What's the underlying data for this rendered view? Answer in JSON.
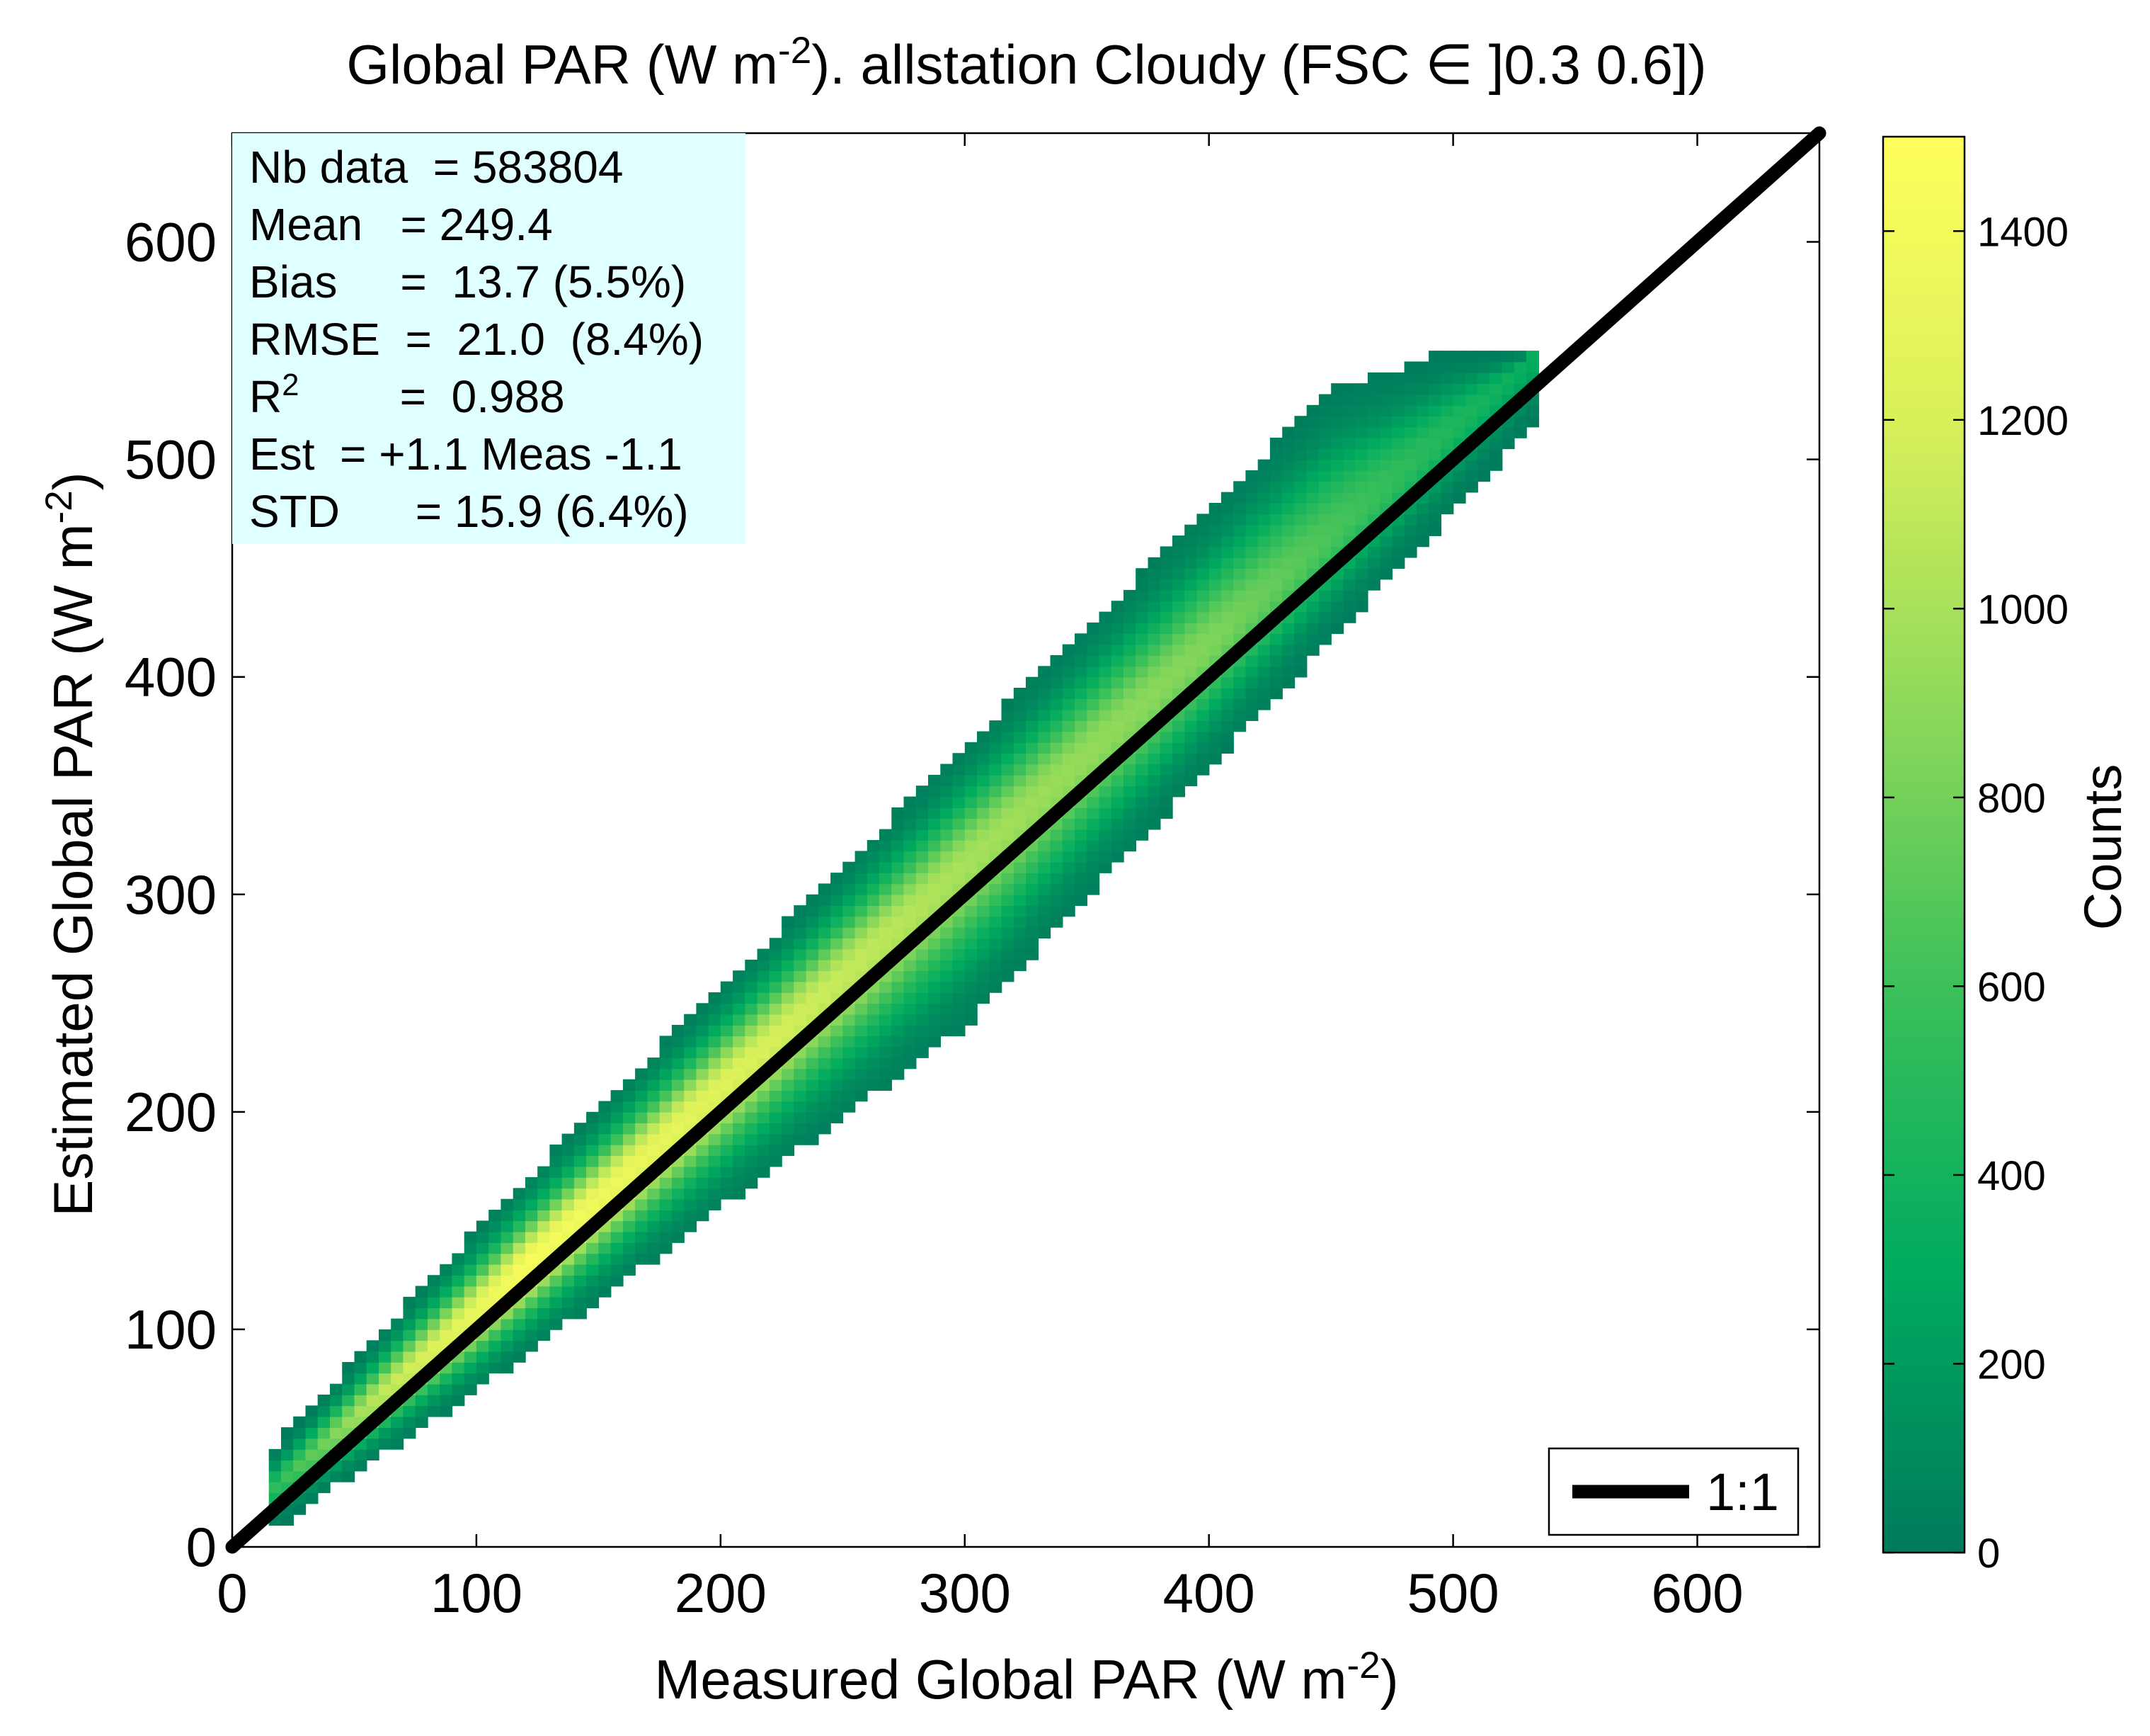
{
  "chart_data": {
    "type": "heatmap",
    "title": {
      "pre": "Global PAR (W m",
      "sup": "-2",
      "post": "). allstation  Cloudy (FSC ∈ ]0.3 0.6])"
    },
    "xlabel": {
      "pre": "Measured Global PAR (W m",
      "sup": "-2",
      "post": ")"
    },
    "ylabel": {
      "pre": "Estimated Global PAR (W m",
      "sup": "-2",
      "post": ")"
    },
    "xlim": [
      0,
      650
    ],
    "ylim": [
      0,
      650
    ],
    "xticks": [
      0,
      100,
      200,
      300,
      400,
      500,
      600
    ],
    "yticks": [
      0,
      100,
      200,
      300,
      400,
      500,
      600
    ],
    "grid": false,
    "colormap": [
      "#007a5c",
      "#00ab5f",
      "#3cc05a",
      "#8fd95a",
      "#d9f05a",
      "#ffff5c"
    ],
    "colorbar": {
      "label": "Counts",
      "min": 0,
      "max": 1500,
      "ticks": [
        0,
        200,
        400,
        600,
        800,
        1000,
        1200,
        1400
      ]
    },
    "density": {
      "x_range": [
        15,
        535
      ],
      "bin_size": 5,
      "band_offset": {
        "at_x": [
          15,
          100,
          300,
          450,
          535
        ],
        "values": [
          10,
          8,
          14,
          16,
          15
        ]
      },
      "band_below": {
        "at_x": [
          15,
          100,
          300,
          535
        ],
        "values": [
          -6,
          -26,
          -58,
          -15
        ]
      },
      "band_above": {
        "at_x": [
          15,
          100,
          300,
          450,
          500,
          535
        ],
        "values": [
          26,
          44,
          66,
          80,
          48,
          15
        ]
      },
      "peak_counts": {
        "at_x": [
          15,
          60,
          120,
          200,
          300,
          400,
          450,
          535
        ],
        "values": [
          500,
          1100,
          1450,
          1250,
          1000,
          850,
          650,
          320
        ]
      }
    },
    "reference_line": {
      "label": "1:1",
      "from": [
        0,
        0
      ],
      "to": [
        650,
        650
      ],
      "color": "#000000"
    },
    "legend": {
      "position": "bottom-right",
      "entries": [
        "1:1"
      ]
    },
    "stats_box": {
      "position": "top-left",
      "background": "#e0ffff",
      "lines": [
        {
          "pre": "Nb data  = 583804"
        },
        {
          "pre": "Mean   = 249.4"
        },
        {
          "pre": "Bias     =  13.7 (5.5%)"
        },
        {
          "pre": "RMSE  =  21.0  (8.4%)"
        },
        {
          "pre": "R",
          "sup": "2",
          "post": "        =  0.988"
        },
        {
          "pre": "Est  = +1.1 Meas -1.1"
        },
        {
          "pre": "STD      = 15.9 (6.4%)"
        }
      ]
    }
  }
}
